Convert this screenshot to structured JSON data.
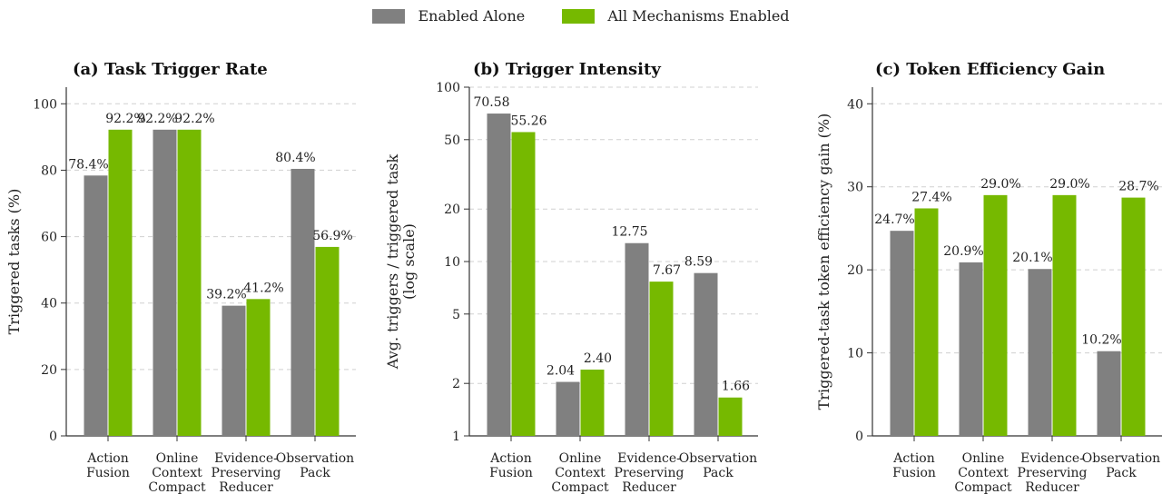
{
  "legend": {
    "series": [
      {
        "name": "Enabled Alone",
        "color": "#808080"
      },
      {
        "name": "All Mechanisms Enabled",
        "color": "#76b900"
      }
    ]
  },
  "chart_data": [
    {
      "type": "bar",
      "title": "(a) Task Trigger Rate",
      "xlabel": "",
      "ylabel": "Triggered tasks (%)",
      "yscale": "linear",
      "ylim": [
        0,
        105
      ],
      "yticks": [
        0,
        20,
        40,
        60,
        80,
        100
      ],
      "grid": "y-dashed",
      "categories": [
        [
          "Action",
          "Fusion"
        ],
        [
          "Online",
          "Context",
          "Compact"
        ],
        [
          "Evidence-",
          "Preserving",
          "Reducer"
        ],
        [
          "Observation",
          "Pack"
        ]
      ],
      "series": [
        {
          "name": "Enabled Alone",
          "values": [
            78.4,
            92.2,
            39.2,
            80.4
          ],
          "labels": [
            "78.4%",
            "92.2%",
            "39.2%",
            "80.4%"
          ]
        },
        {
          "name": "All Mechanisms Enabled",
          "values": [
            92.2,
            92.2,
            41.2,
            56.9
          ],
          "labels": [
            "92.2%",
            "92.2%",
            "41.2%",
            "56.9%"
          ]
        }
      ]
    },
    {
      "type": "bar",
      "title": "(b) Trigger Intensity",
      "xlabel": "",
      "ylabel": [
        "Avg. triggers / triggered task",
        "(log scale)"
      ],
      "yscale": "log",
      "ylim": [
        1,
        100
      ],
      "yticks": [
        1,
        2,
        5,
        10,
        20,
        50,
        100
      ],
      "grid": "y-dashed",
      "categories": [
        [
          "Action",
          "Fusion"
        ],
        [
          "Online",
          "Context",
          "Compact"
        ],
        [
          "Evidence-",
          "Preserving",
          "Reducer"
        ],
        [
          "Observation",
          "Pack"
        ]
      ],
      "series": [
        {
          "name": "Enabled Alone",
          "values": [
            70.58,
            2.04,
            12.75,
            8.59
          ],
          "labels": [
            "70.58",
            "2.04",
            "12.75",
            "8.59"
          ]
        },
        {
          "name": "All Mechanisms Enabled",
          "values": [
            55.26,
            2.4,
            7.67,
            1.66
          ],
          "labels": [
            "55.26",
            "2.40",
            "7.67",
            "1.66"
          ]
        }
      ]
    },
    {
      "type": "bar",
      "title": "(c) Token Efficiency Gain",
      "xlabel": "",
      "ylabel": "Triggered-task token efficiency gain (%)",
      "yscale": "linear",
      "ylim": [
        0,
        42
      ],
      "yticks": [
        0,
        10,
        20,
        30,
        40
      ],
      "grid": "y-dashed",
      "categories": [
        [
          "Action",
          "Fusion"
        ],
        [
          "Online",
          "Context",
          "Compact"
        ],
        [
          "Evidence-",
          "Preserving",
          "Reducer"
        ],
        [
          "Observation",
          "Pack"
        ]
      ],
      "series": [
        {
          "name": "Enabled Alone",
          "values": [
            24.7,
            20.9,
            20.1,
            10.2
          ],
          "labels": [
            "24.7%",
            "20.9%",
            "20.1%",
            "10.2%"
          ]
        },
        {
          "name": "All Mechanisms Enabled",
          "values": [
            27.4,
            29.0,
            29.0,
            28.7
          ],
          "labels": [
            "27.4%",
            "29.0%",
            "29.0%",
            "28.7%"
          ]
        }
      ]
    }
  ]
}
